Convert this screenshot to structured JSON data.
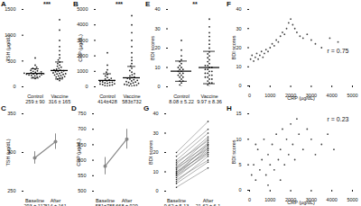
{
  "chart_data": [
    {
      "type": "strip",
      "title": "A",
      "ylabel": "TSH (µg/dL)",
      "categories": [
        "Control\n259 ± 90",
        "Vaccine\n316 ± 165"
      ],
      "points": [
        [
          160,
          180,
          190,
          200,
          210,
          220,
          230,
          235,
          240,
          245,
          250,
          255,
          260,
          265,
          270,
          280,
          290,
          300,
          310,
          320,
          340,
          360,
          380,
          420,
          560
        ],
        [
          120,
          150,
          170,
          180,
          190,
          200,
          210,
          220,
          230,
          240,
          250,
          255,
          260,
          270,
          280,
          290,
          300,
          310,
          320,
          330,
          340,
          360,
          380,
          400,
          420,
          450,
          480,
          520,
          560,
          620,
          700,
          780,
          900,
          1100,
          1300
        ]
      ],
      "mean": [
        259,
        316
      ],
      "sd": [
        90,
        165
      ],
      "annotation": "***",
      "color": "#222222",
      "ylim": [
        0,
        1500
      ],
      "yticks": [
        0,
        500,
        1000,
        1500
      ]
    },
    {
      "type": "strip",
      "title": "B",
      "ylabel": "CRP (µg/dL)",
      "categories": [
        "Control\n414±428",
        "Vaccine\n583±732"
      ],
      "points": [
        [
          50,
          80,
          100,
          120,
          150,
          180,
          200,
          220,
          250,
          280,
          300,
          320,
          350,
          380,
          400,
          450,
          500,
          550,
          600,
          700,
          800,
          950,
          1100,
          1400,
          2200
        ],
        [
          40,
          60,
          90,
          110,
          130,
          160,
          190,
          220,
          250,
          280,
          310,
          340,
          380,
          420,
          460,
          500,
          550,
          600,
          650,
          700,
          780,
          850,
          950,
          1050,
          1200,
          1350,
          1500,
          1700,
          1900,
          2200,
          2600,
          3000,
          3500,
          4000,
          4600
        ]
      ],
      "mean": [
        414,
        583
      ],
      "sd": [
        428,
        732
      ],
      "annotation": "***",
      "color": "#222222",
      "ylim": [
        0,
        5000
      ],
      "yticks": [
        0,
        1000,
        2000,
        3000,
        4000,
        5000
      ]
    },
    {
      "type": "strip",
      "title": "E",
      "ylabel": "BDI scores",
      "categories": [
        "Control\n8.08 ± 5.22",
        "Vaccine\n9.97 ± 8.36"
      ],
      "points": [
        [
          0,
          1,
          2,
          3,
          3,
          4,
          5,
          5,
          6,
          6,
          7,
          7,
          8,
          8,
          9,
          9,
          10,
          10,
          11,
          12,
          13,
          14,
          16,
          19,
          24
        ],
        [
          0,
          1,
          2,
          2,
          3,
          4,
          4,
          5,
          5,
          6,
          6,
          7,
          7,
          8,
          8,
          9,
          9,
          10,
          10,
          11,
          11,
          12,
          13,
          14,
          15,
          16,
          17,
          18,
          20,
          22,
          24,
          26,
          28,
          31,
          35
        ]
      ],
      "mean": [
        8.08,
        9.97
      ],
      "sd": [
        5.22,
        8.36
      ],
      "annotation": "**",
      "color": "#222222",
      "ylim": [
        0,
        40
      ],
      "yticks": [
        0,
        10,
        20,
        30,
        40
      ]
    },
    {
      "type": "scatter",
      "title": "F",
      "xlabel": "CRP (µg/dL)",
      "ylabel": "BDI scores",
      "annotation": "r = 0.75",
      "color": "#444444",
      "x": [
        50,
        120,
        200,
        280,
        350,
        420,
        500,
        580,
        650,
        720,
        800,
        900,
        1000,
        1100,
        1200,
        1300,
        1400,
        1500,
        1600,
        1700,
        1800,
        1900,
        2000,
        2100,
        2200,
        2300,
        2450,
        2600,
        2800,
        3000,
        3200,
        3500,
        3900,
        4300
      ],
      "values": [
        14,
        16,
        13,
        15,
        17,
        14,
        16,
        18,
        15,
        17,
        19,
        18,
        20,
        22,
        21,
        24,
        23,
        26,
        28,
        27,
        30,
        33,
        35,
        32,
        30,
        28,
        26,
        25,
        27,
        24,
        22,
        20,
        25,
        23
      ],
      "xlim": [
        0,
        5000
      ],
      "xticks": [
        0,
        1000,
        2000,
        3000,
        4000,
        5000
      ],
      "ylim": [
        0,
        40
      ],
      "yticks": [
        0,
        10,
        20,
        30,
        40
      ]
    },
    {
      "type": "line",
      "title": "C",
      "ylabel": "TSH (µg/dL)",
      "categories": [
        "Baseline\n293 ± 112",
        "After\n314 ± 161"
      ],
      "values": [
        293,
        314
      ],
      "errors": [
        8,
        10
      ],
      "color": "#888888",
      "ylim": [
        250,
        350
      ],
      "yticks": [
        250,
        300,
        350
      ]
    },
    {
      "type": "line",
      "title": "D",
      "ylabel": "CRP (µg/dL)",
      "categories": [
        "Baseline\n581±785",
        "After\n668 ± 929"
      ],
      "values": [
        581,
        668
      ],
      "errors": [
        28,
        32
      ],
      "color": "#888888",
      "ylim": [
        500,
        750
      ],
      "yticks": [
        500,
        550,
        600,
        650,
        700,
        750
      ]
    },
    {
      "type": "paired",
      "title": "G",
      "ylabel": "BDI scores",
      "categories": [
        "Baseline\n9.62 ± 5.13",
        "After\n21.62 ± 6.1"
      ],
      "values": [
        [
          2,
          12
        ],
        [
          4,
          15
        ],
        [
          5,
          18
        ],
        [
          6,
          16
        ],
        [
          7,
          20
        ],
        [
          8,
          19
        ],
        [
          8,
          22
        ],
        [
          9,
          21
        ],
        [
          9,
          24
        ],
        [
          10,
          20
        ],
        [
          10,
          23
        ],
        [
          11,
          25
        ],
        [
          12,
          22
        ],
        [
          12,
          27
        ],
        [
          13,
          24
        ],
        [
          14,
          28
        ],
        [
          15,
          26
        ],
        [
          16,
          30
        ],
        [
          18,
          32
        ],
        [
          20,
          36
        ]
      ],
      "color": "#666666",
      "ylim": [
        0,
        40
      ],
      "yticks": [
        0,
        10,
        20,
        30,
        40
      ]
    },
    {
      "type": "scatter",
      "title": "H",
      "xlabel": "CRP (µg/dL)",
      "ylabel": "BDI scores",
      "annotation": "r = 0.23",
      "color": "#444444",
      "x": [
        100,
        200,
        300,
        400,
        500,
        600,
        700,
        800,
        900,
        1000,
        1100,
        1200,
        1300,
        1400,
        1500,
        1600,
        1700,
        1800,
        1900,
        2000,
        2100,
        2200,
        2400,
        2600,
        2800,
        3000,
        3200,
        3500,
        3800,
        4100,
        300,
        900,
        1500,
        2300
      ],
      "values": [
        3,
        5,
        2,
        8,
        4,
        6,
        10,
        3,
        7,
        5,
        9,
        4,
        11,
        6,
        8,
        12,
        5,
        10,
        7,
        13,
        9,
        6,
        11,
        8,
        12,
        10,
        7,
        9,
        11,
        8,
        9,
        1,
        2,
        14
      ],
      "xlim": [
        0,
        5000
      ],
      "xticks": [
        0,
        1000,
        2000,
        3000,
        4000,
        5000
      ],
      "ylim": [
        0,
        15
      ],
      "yticks": [
        0,
        5,
        10,
        15
      ]
    }
  ]
}
